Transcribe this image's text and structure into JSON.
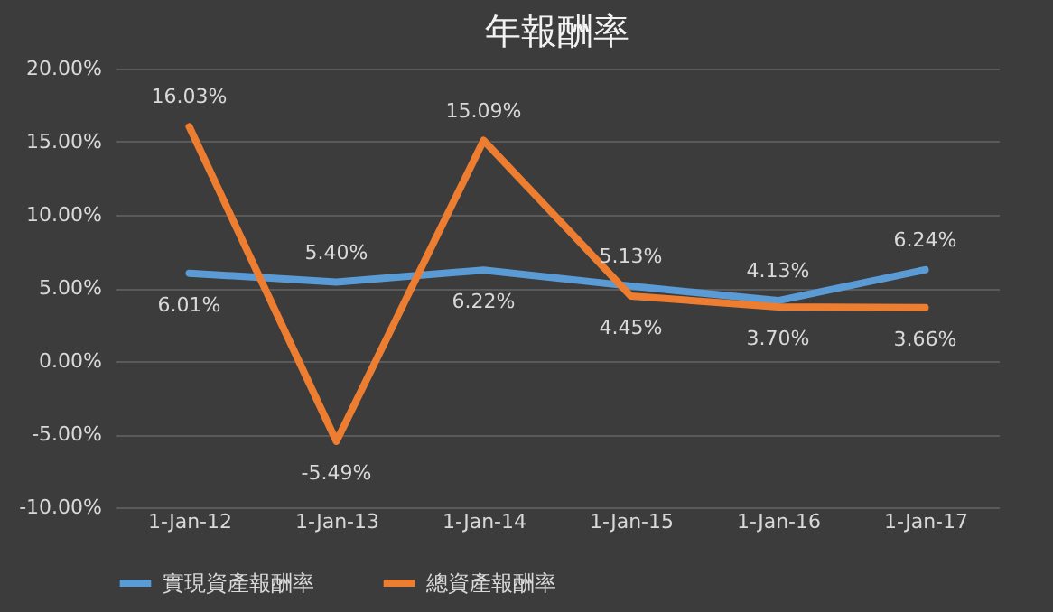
{
  "chart_data": {
    "type": "line",
    "title": "年報酬率",
    "categories": [
      "1-Jan-12",
      "1-Jan-13",
      "1-Jan-14",
      "1-Jan-15",
      "1-Jan-16",
      "1-Jan-17"
    ],
    "series": [
      {
        "name": "實現資產報酬率",
        "color": "#5b9bd5",
        "values": [
          6.01,
          5.4,
          6.22,
          5.13,
          4.13,
          6.24
        ],
        "value_labels": [
          "6.01%",
          "5.40%",
          "6.22%",
          "5.13%",
          "4.13%",
          "6.24%"
        ]
      },
      {
        "name": "總資產報酬率",
        "color": "#ed7d31",
        "values": [
          16.03,
          -5.49,
          15.09,
          4.45,
          3.7,
          3.66
        ],
        "value_labels": [
          "16.03%",
          "-5.49%",
          "15.09%",
          "4.45%",
          "3.70%",
          "3.66%"
        ]
      }
    ],
    "ylim": [
      -10,
      20
    ],
    "yticks": [
      {
        "value": -10,
        "label": "-10.00%"
      },
      {
        "value": -5,
        "label": "-5.00%"
      },
      {
        "value": 0,
        "label": "0.00%"
      },
      {
        "value": 5,
        "label": "5.00%"
      },
      {
        "value": 10,
        "label": "10.00%"
      },
      {
        "value": 15,
        "label": "15.00%"
      },
      {
        "value": 20,
        "label": "20.00%"
      }
    ],
    "grid": "y",
    "legend": "bottom",
    "marker": "none",
    "line_style": "solid"
  }
}
